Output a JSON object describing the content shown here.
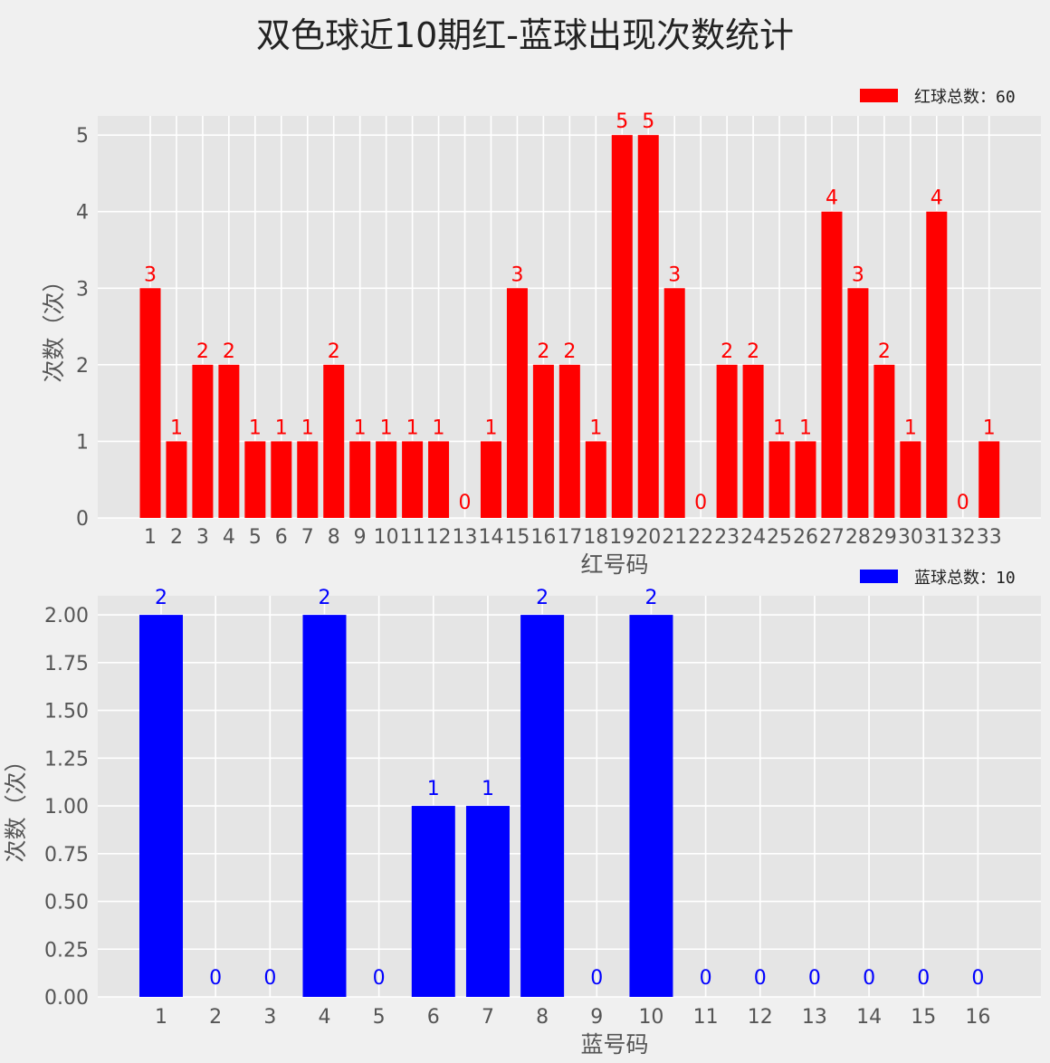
{
  "title": "双色球近10期红-蓝球出现次数统计",
  "chart_data": [
    {
      "type": "bar",
      "categories": [
        "1",
        "2",
        "3",
        "4",
        "5",
        "6",
        "7",
        "8",
        "9",
        "10",
        "11",
        "12",
        "13",
        "14",
        "15",
        "16",
        "17",
        "18",
        "19",
        "20",
        "21",
        "22",
        "23",
        "24",
        "25",
        "26",
        "27",
        "28",
        "29",
        "30",
        "31",
        "32",
        "33"
      ],
      "values": [
        3,
        1,
        2,
        2,
        1,
        1,
        1,
        2,
        1,
        1,
        1,
        1,
        0,
        1,
        3,
        2,
        2,
        1,
        5,
        5,
        3,
        0,
        2,
        2,
        1,
        1,
        4,
        3,
        2,
        1,
        4,
        0,
        1
      ],
      "xlabel": "红号码",
      "ylabel": "次数（次）",
      "legend": "红球总数：60",
      "legend_position": "top-right",
      "ylim": [
        0,
        5.25
      ],
      "yticks": [
        "0",
        "1",
        "2",
        "3",
        "4",
        "5"
      ],
      "color": "#ff0000",
      "grid": true
    },
    {
      "type": "bar",
      "categories": [
        "1",
        "2",
        "3",
        "4",
        "5",
        "6",
        "7",
        "8",
        "9",
        "10",
        "11",
        "12",
        "13",
        "14",
        "15",
        "16"
      ],
      "values": [
        2,
        0,
        0,
        2,
        0,
        1,
        1,
        2,
        0,
        2,
        0,
        0,
        0,
        0,
        0,
        0
      ],
      "xlabel": "蓝号码",
      "ylabel": "次数（次）",
      "legend": "蓝球总数：10",
      "legend_position": "top-right",
      "ylim": [
        0,
        2.1
      ],
      "yticks": [
        "0.00",
        "0.25",
        "0.50",
        "0.75",
        "1.00",
        "1.25",
        "1.50",
        "1.75",
        "2.00"
      ],
      "color": "#0000ff",
      "grid": true
    }
  ]
}
